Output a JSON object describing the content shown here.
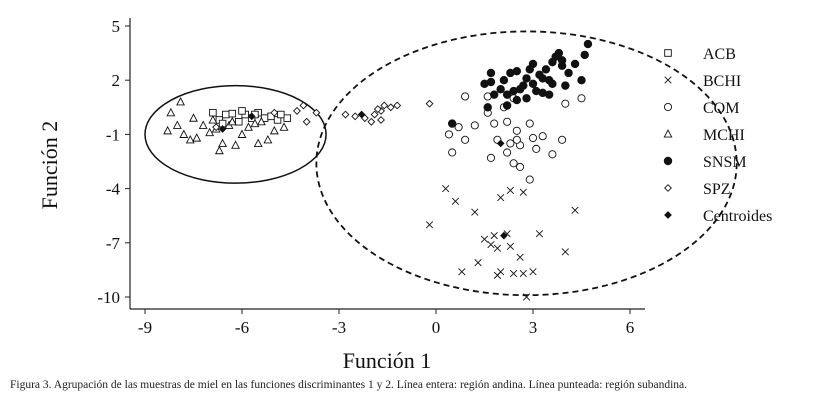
{
  "caption": "Figura 3. Agrupación de las muestras de miel en las funciones discriminantes 1 y 2. Línea entera: región andina. Línea punteada: región subandina.",
  "chart_data": {
    "type": "scatter",
    "xlabel": "Función 1",
    "ylabel": "Función 2",
    "xlim": [
      -10,
      7
    ],
    "ylim": [
      -10.5,
      5.5
    ],
    "xticks": [
      -9,
      -6,
      -3,
      0,
      3,
      6
    ],
    "yticks": [
      5,
      2,
      -1,
      -4,
      -7,
      -10
    ],
    "grid": false,
    "legend_position": "right",
    "regions": [
      {
        "description": "Línea entera: región andina",
        "style": "solid",
        "cx": -6.2,
        "cy": -1.0,
        "rx": 2.8,
        "ry": 2.7
      },
      {
        "description": "Línea punteada: región subandina",
        "style": "dashed",
        "cx": 2.8,
        "cy": -2.6,
        "rx": 6.5,
        "ry": 7.3
      }
    ],
    "series": [
      {
        "name": "ACB",
        "marker": "square-open",
        "points": [
          [
            -6.9,
            0.2
          ],
          [
            -6.7,
            -0.2
          ],
          [
            -6.5,
            0.1
          ],
          [
            -6.3,
            0.15
          ],
          [
            -6.1,
            -0.3
          ],
          [
            -5.9,
            0.1
          ],
          [
            -5.7,
            -0.1
          ],
          [
            -5.5,
            0.2
          ],
          [
            -5.3,
            -0.1
          ],
          [
            -5.1,
            0.0
          ],
          [
            -4.9,
            -0.2
          ],
          [
            -4.6,
            -0.1
          ],
          [
            -6.6,
            -0.4
          ],
          [
            -6.0,
            0.3
          ],
          [
            -5.6,
            0.1
          ],
          [
            -4.8,
            0.1
          ]
        ]
      },
      {
        "name": "BCHI",
        "marker": "x",
        "points": [
          [
            0.3,
            -4.0
          ],
          [
            0.6,
            -4.7
          ],
          [
            -0.2,
            -6.0
          ],
          [
            1.2,
            -5.3
          ],
          [
            2.3,
            -4.1
          ],
          [
            2.7,
            -4.2
          ],
          [
            2.0,
            -4.5
          ],
          [
            1.8,
            -6.6
          ],
          [
            1.5,
            -6.8
          ],
          [
            1.9,
            -7.3
          ],
          [
            2.2,
            -6.5
          ],
          [
            3.2,
            -6.5
          ],
          [
            2.6,
            -7.8
          ],
          [
            0.8,
            -8.6
          ],
          [
            1.3,
            -8.1
          ],
          [
            2.0,
            -8.6
          ],
          [
            2.7,
            -8.7
          ],
          [
            3.0,
            -8.6
          ],
          [
            4.0,
            -7.5
          ],
          [
            4.3,
            -5.2
          ],
          [
            1.7,
            -7.1
          ],
          [
            2.3,
            -7.2
          ],
          [
            1.9,
            -8.8
          ],
          [
            2.4,
            -8.7
          ],
          [
            2.8,
            -10.0
          ]
        ]
      },
      {
        "name": "COM",
        "marker": "circle-open",
        "points": [
          [
            0.9,
            1.1
          ],
          [
            1.6,
            1.1
          ],
          [
            2.4,
            1.0
          ],
          [
            1.2,
            -0.5
          ],
          [
            0.7,
            -0.6
          ],
          [
            1.8,
            -0.4
          ],
          [
            2.2,
            -0.3
          ],
          [
            2.5,
            -0.8
          ],
          [
            2.9,
            -0.4
          ],
          [
            3.3,
            -1.1
          ],
          [
            3.9,
            -1.3
          ],
          [
            4.0,
            0.7
          ],
          [
            4.5,
            1.0
          ],
          [
            1.9,
            -1.3
          ],
          [
            2.3,
            -1.5
          ],
          [
            2.6,
            -1.6
          ],
          [
            3.1,
            -1.8
          ],
          [
            2.2,
            -2.0
          ],
          [
            1.7,
            -2.3
          ],
          [
            3.6,
            -2.1
          ],
          [
            2.4,
            -2.6
          ],
          [
            2.6,
            -2.8
          ],
          [
            0.5,
            -2.0
          ],
          [
            0.9,
            -1.3
          ],
          [
            2.9,
            -3.5
          ],
          [
            1.6,
            0.2
          ],
          [
            2.1,
            0.5
          ],
          [
            3.0,
            -1.2
          ],
          [
            2.5,
            -1.3
          ],
          [
            0.4,
            -1.0
          ]
        ]
      },
      {
        "name": "MCHI",
        "marker": "triangle-open",
        "points": [
          [
            -8.3,
            -0.8
          ],
          [
            -8.0,
            -0.5
          ],
          [
            -7.8,
            -1.0
          ],
          [
            -7.6,
            -1.3
          ],
          [
            -7.2,
            -0.5
          ],
          [
            -7.0,
            -0.9
          ],
          [
            -6.8,
            -0.7
          ],
          [
            -6.6,
            -1.5
          ],
          [
            -6.4,
            -0.5
          ],
          [
            -6.2,
            -1.6
          ],
          [
            -6.0,
            -1.0
          ],
          [
            -5.8,
            -0.6
          ],
          [
            -5.5,
            -1.5
          ],
          [
            -5.2,
            -1.3
          ],
          [
            -5.0,
            -0.8
          ],
          [
            -4.7,
            -0.6
          ],
          [
            -7.9,
            0.8
          ],
          [
            -7.5,
            -0.1
          ],
          [
            -6.9,
            -0.2
          ],
          [
            -6.3,
            -0.3
          ],
          [
            -5.6,
            -0.4
          ],
          [
            -8.2,
            0.2
          ],
          [
            -6.7,
            -1.9
          ],
          [
            -5.4,
            -0.3
          ],
          [
            -7.4,
            -1.2
          ]
        ]
      },
      {
        "name": "SNSM",
        "marker": "circle-filled",
        "points": [
          [
            2.1,
            2.0
          ],
          [
            2.5,
            2.5
          ],
          [
            2.8,
            2.1
          ],
          [
            3.0,
            2.9
          ],
          [
            3.2,
            2.3
          ],
          [
            3.4,
            2.6
          ],
          [
            3.6,
            3.0
          ],
          [
            3.8,
            3.5
          ],
          [
            3.9,
            2.8
          ],
          [
            4.1,
            2.4
          ],
          [
            3.5,
            2.0
          ],
          [
            3.0,
            1.8
          ],
          [
            2.7,
            1.7
          ],
          [
            2.4,
            1.4
          ],
          [
            2.0,
            1.5
          ],
          [
            1.7,
            1.9
          ],
          [
            1.8,
            1.2
          ],
          [
            2.2,
            1.2
          ],
          [
            2.6,
            1.5
          ],
          [
            3.1,
            1.4
          ],
          [
            3.3,
            1.3
          ],
          [
            3.6,
            1.8
          ],
          [
            4.0,
            1.7
          ],
          [
            4.3,
            2.9
          ],
          [
            3.7,
            3.3
          ],
          [
            2.9,
            2.6
          ],
          [
            3.3,
            2.1
          ],
          [
            2.3,
            2.4
          ],
          [
            1.7,
            2.4
          ],
          [
            1.5,
            1.8
          ],
          [
            4.6,
            3.4
          ],
          [
            4.7,
            4.0
          ],
          [
            4.5,
            2.0
          ],
          [
            3.5,
            1.2
          ],
          [
            2.8,
            1.0
          ],
          [
            2.2,
            0.6
          ],
          [
            1.6,
            0.5
          ],
          [
            2.5,
            0.9
          ],
          [
            0.5,
            -0.4
          ],
          [
            3.9,
            3.1
          ]
        ]
      },
      {
        "name": "SPZ",
        "marker": "diamond-open",
        "points": [
          [
            -3.7,
            0.2
          ],
          [
            -2.8,
            0.1
          ],
          [
            -2.5,
            0.0
          ],
          [
            -2.2,
            -0.1
          ],
          [
            -1.9,
            0.1
          ],
          [
            -1.7,
            0.3
          ],
          [
            -1.6,
            0.6
          ],
          [
            -1.4,
            0.5
          ],
          [
            -1.2,
            0.6
          ],
          [
            -1.7,
            -0.2
          ],
          [
            -2.0,
            -0.3
          ],
          [
            -4.0,
            -0.3
          ],
          [
            -4.3,
            0.3
          ],
          [
            -4.1,
            0.6
          ],
          [
            -0.2,
            0.7
          ],
          [
            -5.0,
            0.2
          ],
          [
            -6.8,
            -0.6
          ],
          [
            -1.8,
            0.4
          ]
        ]
      },
      {
        "name": "Centroides",
        "marker": "diamond-filled",
        "points": [
          [
            -6.6,
            -0.7
          ],
          [
            -5.7,
            0.0
          ],
          [
            -2.3,
            0.1
          ],
          [
            2.0,
            -1.5
          ],
          [
            2.1,
            -6.6
          ]
        ]
      }
    ]
  }
}
